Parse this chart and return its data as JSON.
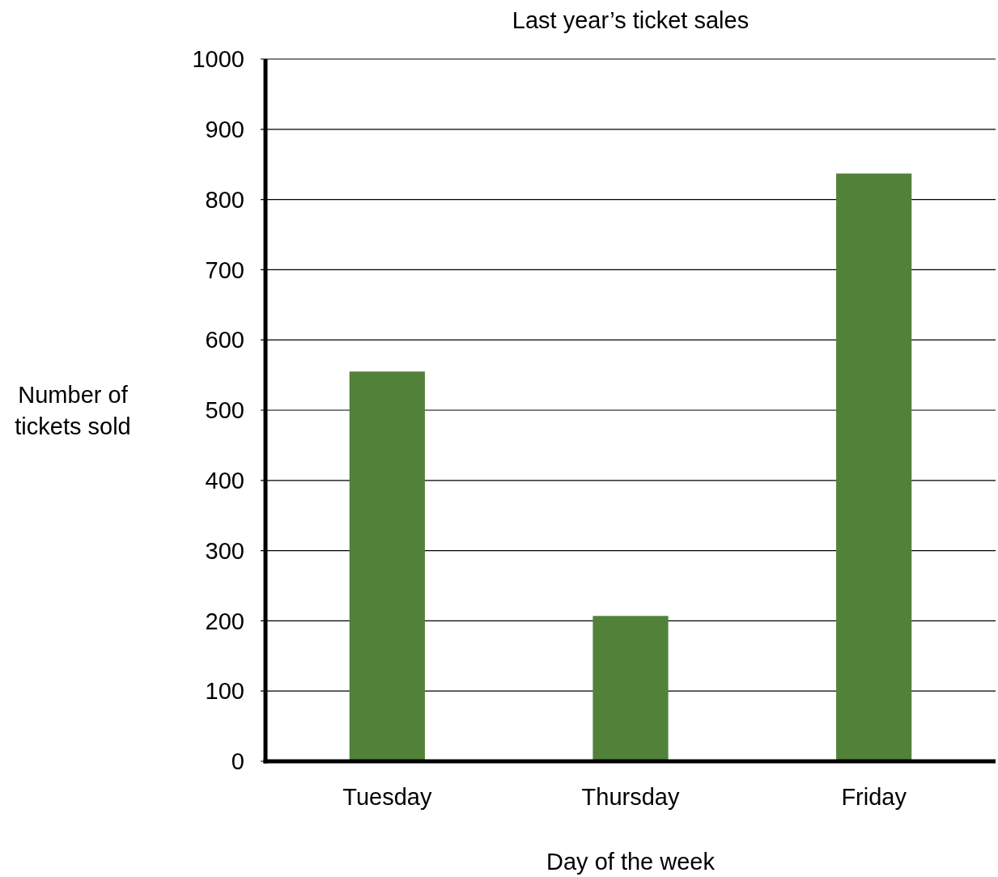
{
  "chart_data": {
    "type": "bar",
    "title": "Last year’s ticket sales",
    "xlabel": "Day of the week",
    "ylabel": "Number of tickets sold",
    "categories": [
      "Tuesday",
      "Thursday",
      "Friday"
    ],
    "values": [
      555,
      207,
      837
    ],
    "color": "#52813a",
    "ylim": [
      0,
      1000
    ],
    "yticks": [
      0,
      100,
      200,
      300,
      400,
      500,
      600,
      700,
      800,
      900,
      1000
    ],
    "grid": "y"
  }
}
